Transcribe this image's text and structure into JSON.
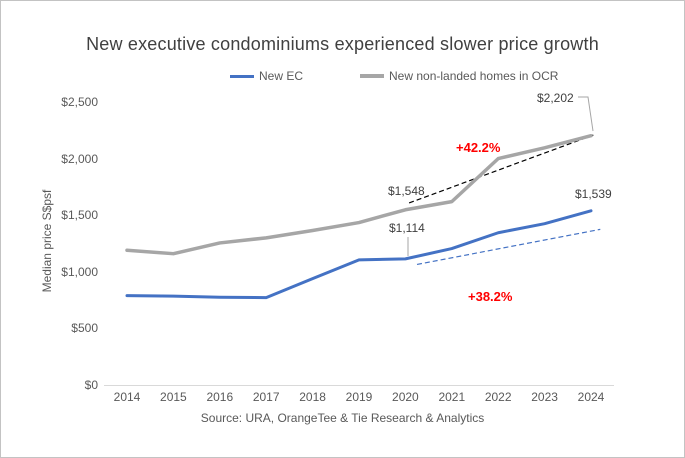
{
  "chart_data": {
    "type": "line",
    "title": "New executive condominiums experienced slower price growth",
    "ylabel": "Median price S$psf",
    "xlabel": "",
    "x": [
      2014,
      2015,
      2016,
      2017,
      2018,
      2019,
      2020,
      2021,
      2022,
      2023,
      2024
    ],
    "ylim": [
      0,
      2500
    ],
    "ytick_step": 500,
    "ytick_labels": [
      "$0",
      "$500",
      "$1,000",
      "$1,500",
      "$2,000",
      "$2,500"
    ],
    "grid": false,
    "legend_position": "top-center",
    "series": [
      {
        "name": "New EC",
        "color": "#4472c4",
        "values": [
          790,
          785,
          775,
          772,
          940,
          1105,
          1114,
          1205,
          1345,
          1425,
          1539
        ]
      },
      {
        "name": "New non-landed homes in OCR",
        "color": "#a6a6a6",
        "values": [
          1190,
          1160,
          1255,
          1300,
          1365,
          1435,
          1548,
          1620,
          2000,
          2095,
          2202
        ]
      }
    ],
    "data_labels": [
      {
        "text": "$1,548",
        "series": "New non-landed homes in OCR",
        "x": 2020,
        "y": 1548
      },
      {
        "text": "$1,114",
        "series": "New EC",
        "x": 2020,
        "y": 1114
      },
      {
        "text": "$2,202",
        "series": "New non-landed homes in OCR",
        "x": 2024,
        "y": 2202
      },
      {
        "text": "$1,539",
        "series": "New EC",
        "x": 2024,
        "y": 1539
      }
    ],
    "growth_annotations": [
      {
        "text": "+42.2%",
        "color": "#ff0000",
        "series": "New non-landed homes in OCR",
        "period": "2020-2024"
      },
      {
        "text": "+38.2%",
        "color": "#ff0000",
        "series": "New EC",
        "period": "2020-2024"
      }
    ],
    "trend_lines": [
      {
        "series": "New non-landed homes in OCR",
        "style": "dashed",
        "color": "#000000",
        "from": {
          "x": 2020.08,
          "y": 1608
        },
        "to": {
          "x": 2024.05,
          "y": 2208
        }
      },
      {
        "series": "New EC",
        "style": "dashed",
        "color": "#4472c4",
        "from": {
          "x": 2020.25,
          "y": 1065
        },
        "to": {
          "x": 2024.2,
          "y": 1375
        }
      }
    ]
  },
  "footer": {
    "source": "Source: URA, OrangeTee & Tie Research & Analytics"
  },
  "colors": {
    "ec_blue": "#4472c4",
    "ocr_gray": "#a6a6a6",
    "axis_line": "#d9d9d9",
    "tick_text": "#595959",
    "title_text": "#404040",
    "annotation_red": "#ff0000"
  }
}
